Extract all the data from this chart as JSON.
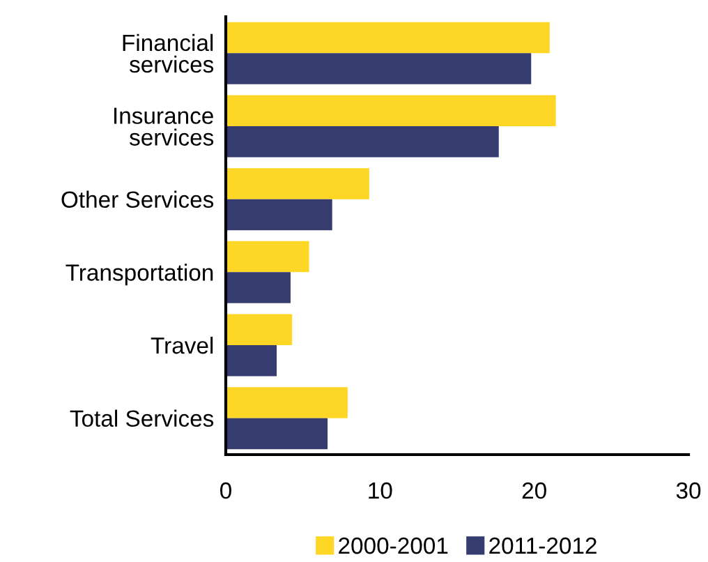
{
  "chart_data": {
    "type": "bar",
    "orientation": "horizontal",
    "categories": [
      "Financial\nservices",
      "Insurance\nservices",
      "Other Services",
      "Transportation",
      "Travel",
      "Total Services"
    ],
    "series": [
      {
        "name": "2000-2001",
        "color": "#fed625",
        "values": [
          21.0,
          21.4,
          9.3,
          5.4,
          4.3,
          7.9
        ]
      },
      {
        "name": "2011-2012",
        "color": "#363c70",
        "values": [
          19.8,
          17.7,
          6.9,
          4.2,
          3.3,
          6.6
        ]
      }
    ],
    "xlim": [
      0,
      30
    ],
    "xticks": [
      0,
      10,
      20,
      30
    ],
    "grid": false,
    "legend": "bottom"
  }
}
